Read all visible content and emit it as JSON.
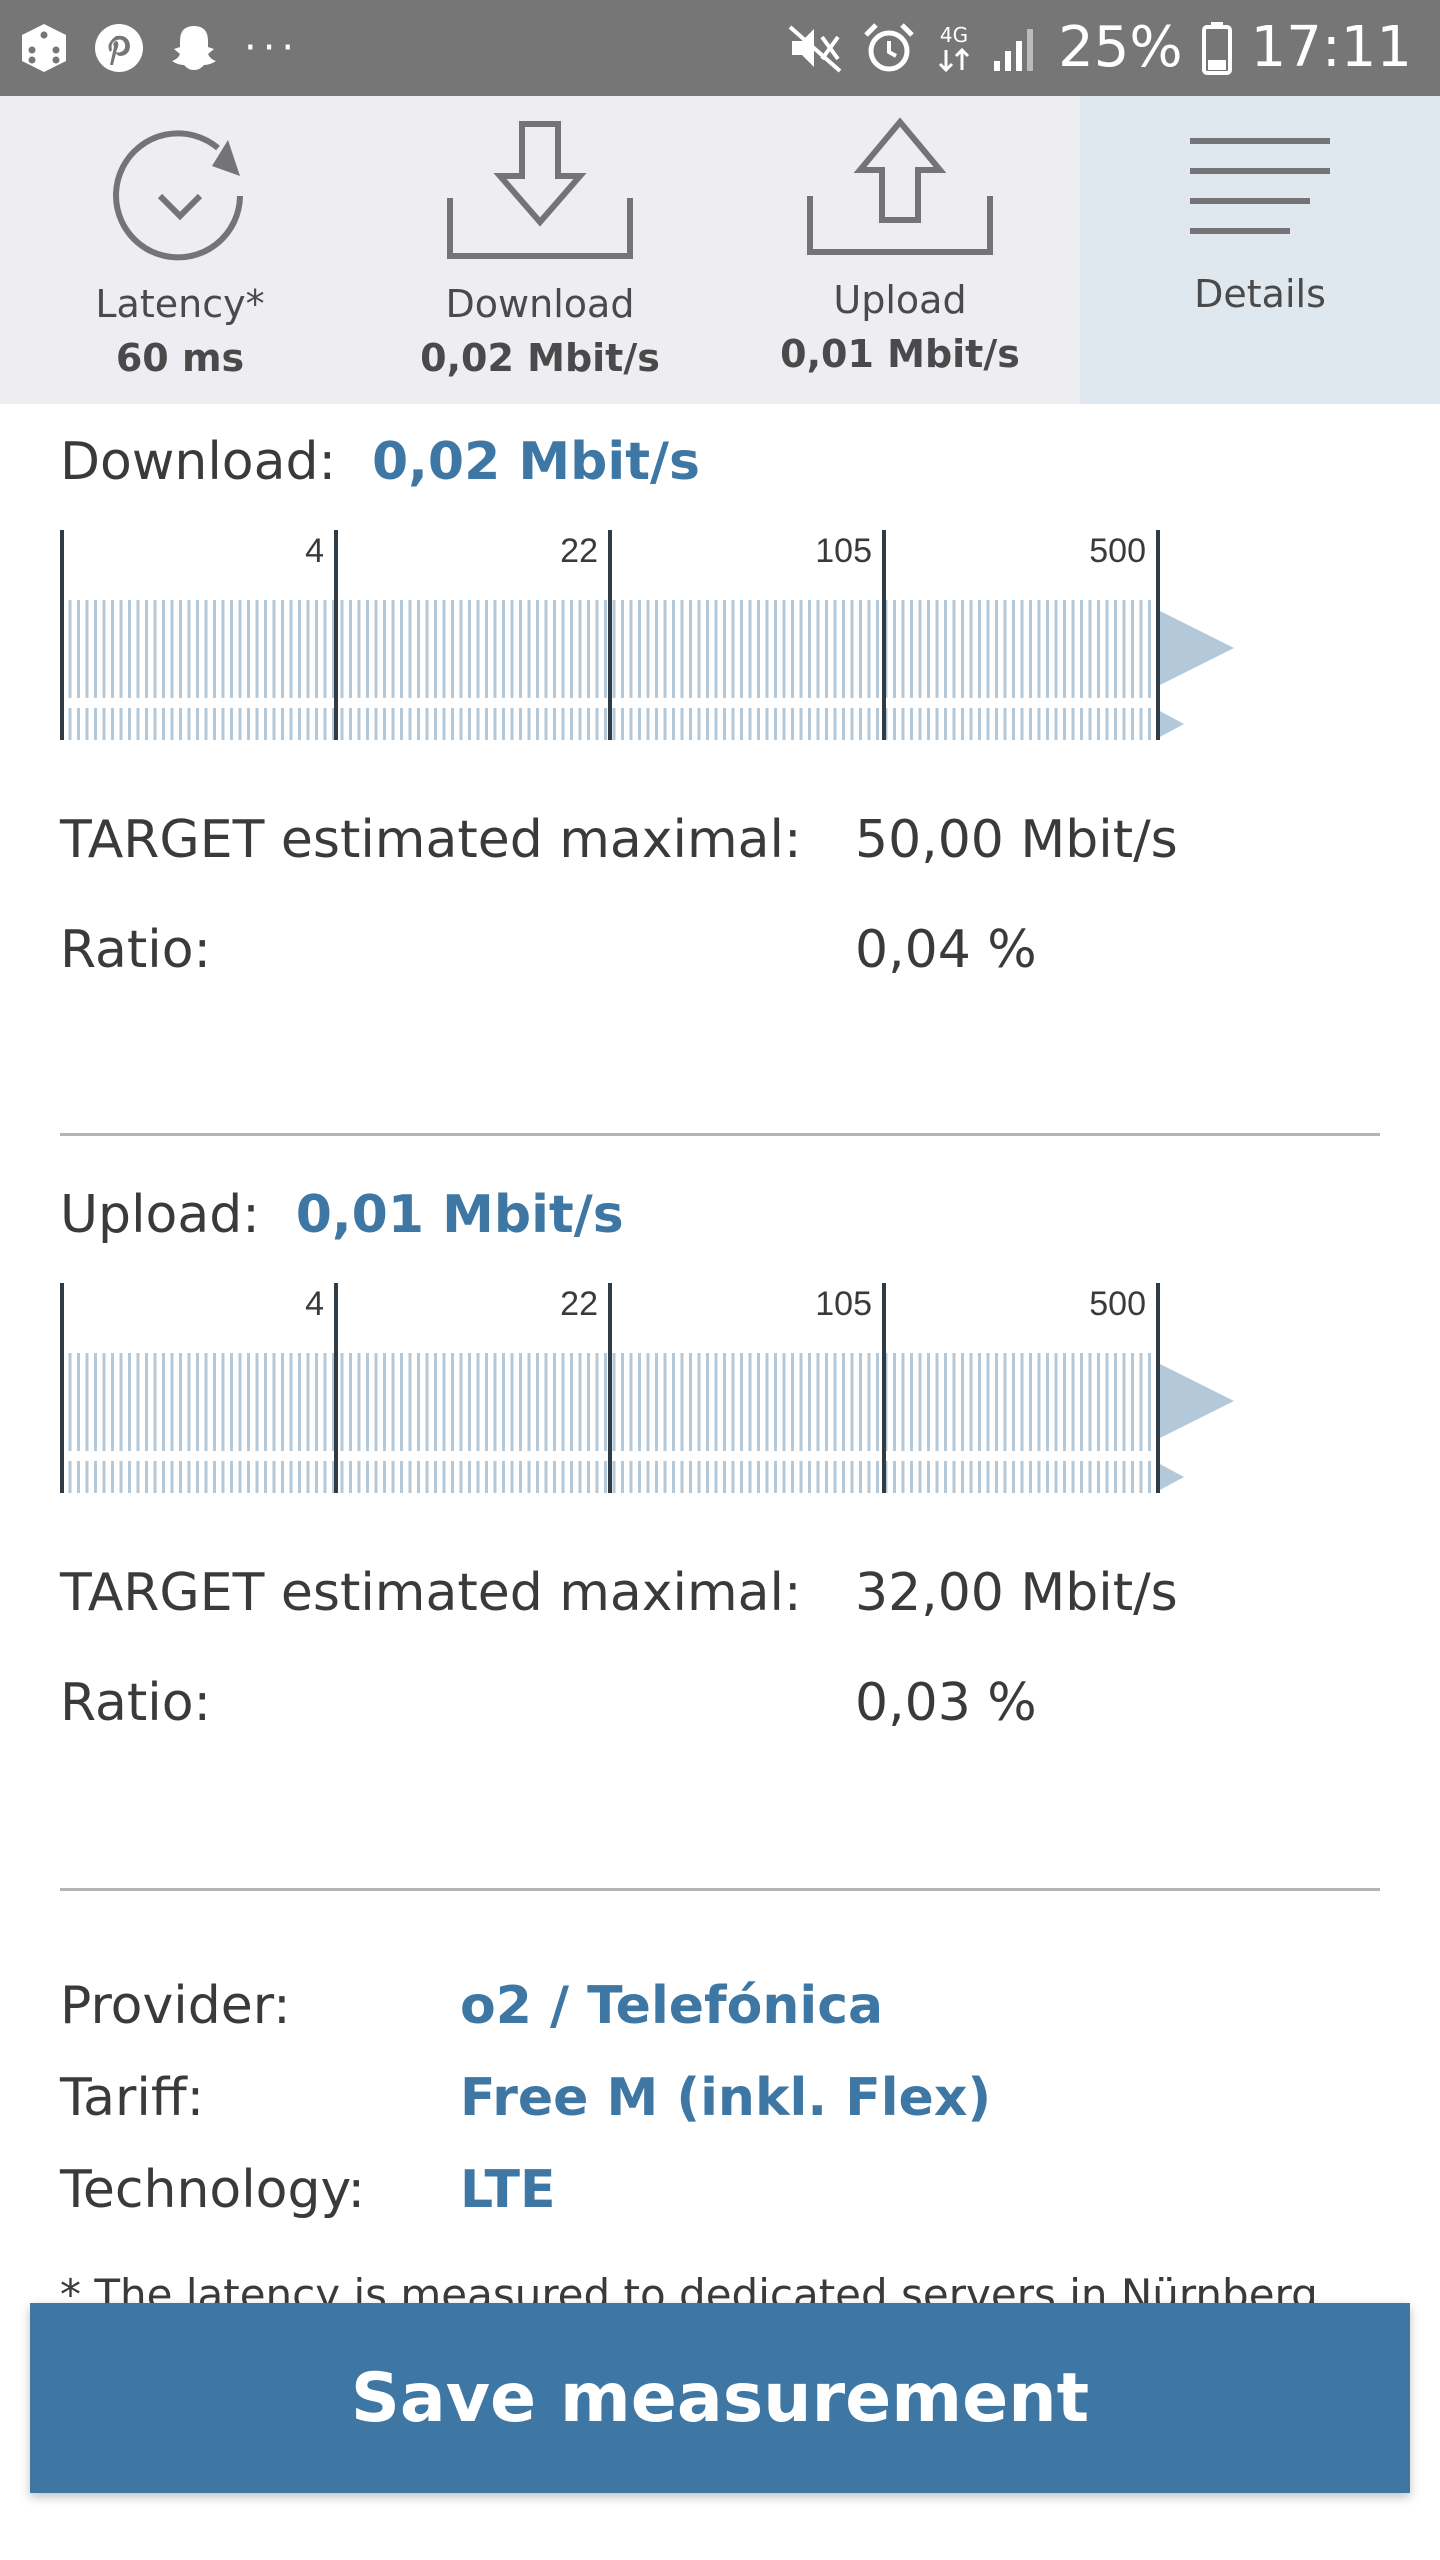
{
  "status_bar": {
    "battery_percent": "25%",
    "time": "17:11",
    "network": "4G",
    "more": "···"
  },
  "tabs": [
    {
      "label": "Latency*",
      "value": "60 ms",
      "icon": "timer-icon"
    },
    {
      "label": "Download",
      "value": "0,02 Mbit/s",
      "icon": "download-icon"
    },
    {
      "label": "Upload",
      "value": "0,01 Mbit/s",
      "icon": "upload-icon"
    },
    {
      "label": "Details",
      "value": "",
      "icon": "menu-icon"
    }
  ],
  "download": {
    "label": "Download:",
    "value": "0,02 Mbit/s",
    "scale_ticks": [
      "4",
      "22",
      "105",
      "500"
    ],
    "target_label": "TARGET estimated maximal:",
    "target_value": "50,00 Mbit/s",
    "ratio_label": "Ratio:",
    "ratio_value": "0,04 %"
  },
  "upload": {
    "label": "Upload:",
    "value": "0,01 Mbit/s",
    "scale_ticks": [
      "4",
      "22",
      "105",
      "500"
    ],
    "target_label": "TARGET estimated maximal:",
    "target_value": "32,00 Mbit/s",
    "ratio_label": "Ratio:",
    "ratio_value": "0,03 %"
  },
  "info": {
    "provider_label": "Provider:",
    "provider_value": "o2 / Telefónica",
    "tariff_label": "Tariff:",
    "tariff_value": "Free M (inkl. Flex)",
    "technology_label": "Technology:",
    "technology_value": "LTE"
  },
  "footnote": "* The latency is measured to dedicated servers in Nürnberg",
  "save_button_label": "Save measurement",
  "colors": {
    "accent": "#3e77a3",
    "scale_stripes": "#b3c9da",
    "tab_bg": "#ededf2",
    "tab_active_bg": "#dfe7ef"
  }
}
